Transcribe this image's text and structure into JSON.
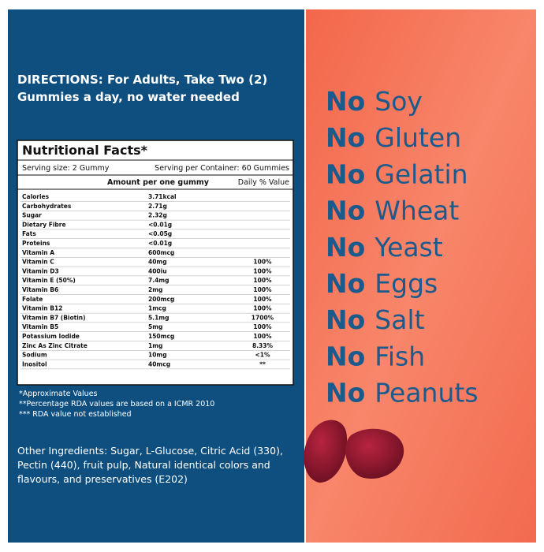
{
  "directions": {
    "lines": [
      "DIRECTIONS: For Adults, Take Two (2)",
      "Gummies a day, no water needed"
    ]
  },
  "table": {
    "title": "Nutritional Facts*",
    "serving": [
      "Serving size: 2 Gummy",
      "Serving per Container: 60 Gummies"
    ],
    "header": [
      "Amount per one gummy",
      "Daily % Value"
    ],
    "rows": [
      [
        "Calories",
        "3.71kcal"
      ],
      [
        "Carbohydrates",
        "2.71g"
      ],
      [
        "Sugar",
        "2.32g"
      ],
      [
        "Dietary Fibre",
        "<0.01g"
      ],
      [
        "Fats",
        "<0.05g"
      ],
      [
        "Proteins",
        "<0.01g"
      ],
      [
        "Vitamin A",
        "600mcg"
      ],
      [
        "Vitamin C",
        "40mg",
        "100%"
      ],
      [
        "Vitamin D3",
        "400iu",
        "100%"
      ],
      [
        "Vitamin E (50%)",
        "7.4mg",
        "100%"
      ],
      [
        "Vitamin B6",
        "2mg",
        "100%"
      ],
      [
        "Folate",
        "200mcg",
        "100%"
      ],
      [
        "Vitamin B12",
        "1mcg",
        "100%"
      ],
      [
        "Vitamin B7 (Biotin)",
        "5.1mg",
        "1700%"
      ],
      [
        "Vitamin B5",
        "5mg",
        "100%"
      ],
      [
        "Potassium Iodide",
        "150mcg",
        "100%"
      ],
      [
        "Zinc As Zinc Citrate",
        "1mg",
        "8.33%"
      ],
      [
        "Sodium",
        "10mg",
        "<1%"
      ],
      [
        "Inositol",
        "40mcg",
        "**"
      ]
    ]
  },
  "footnotes": [
    "*Approximate Values",
    "**Percentage RDA values are based on a ICMR 2010",
    "*** RDA value not established"
  ],
  "ingredients": {
    "lines": [
      "Other Ingredients: Sugar, L-Glucose, Citric Acid (330),",
      "Pectin (440), fruit pulp, Natural identical colors and",
      "flavours, and preservatives (E202)"
    ]
  },
  "free_from": [
    [
      "No",
      "Soy"
    ],
    [
      "No",
      "Gluten"
    ],
    [
      "No",
      "Gelatin"
    ],
    [
      "No",
      "Wheat"
    ],
    [
      "No",
      "Yeast"
    ],
    [
      "No",
      "Eggs"
    ],
    [
      "No",
      "Salt"
    ],
    [
      "No",
      "Fish"
    ],
    [
      "No",
      "Peanuts"
    ]
  ]
}
